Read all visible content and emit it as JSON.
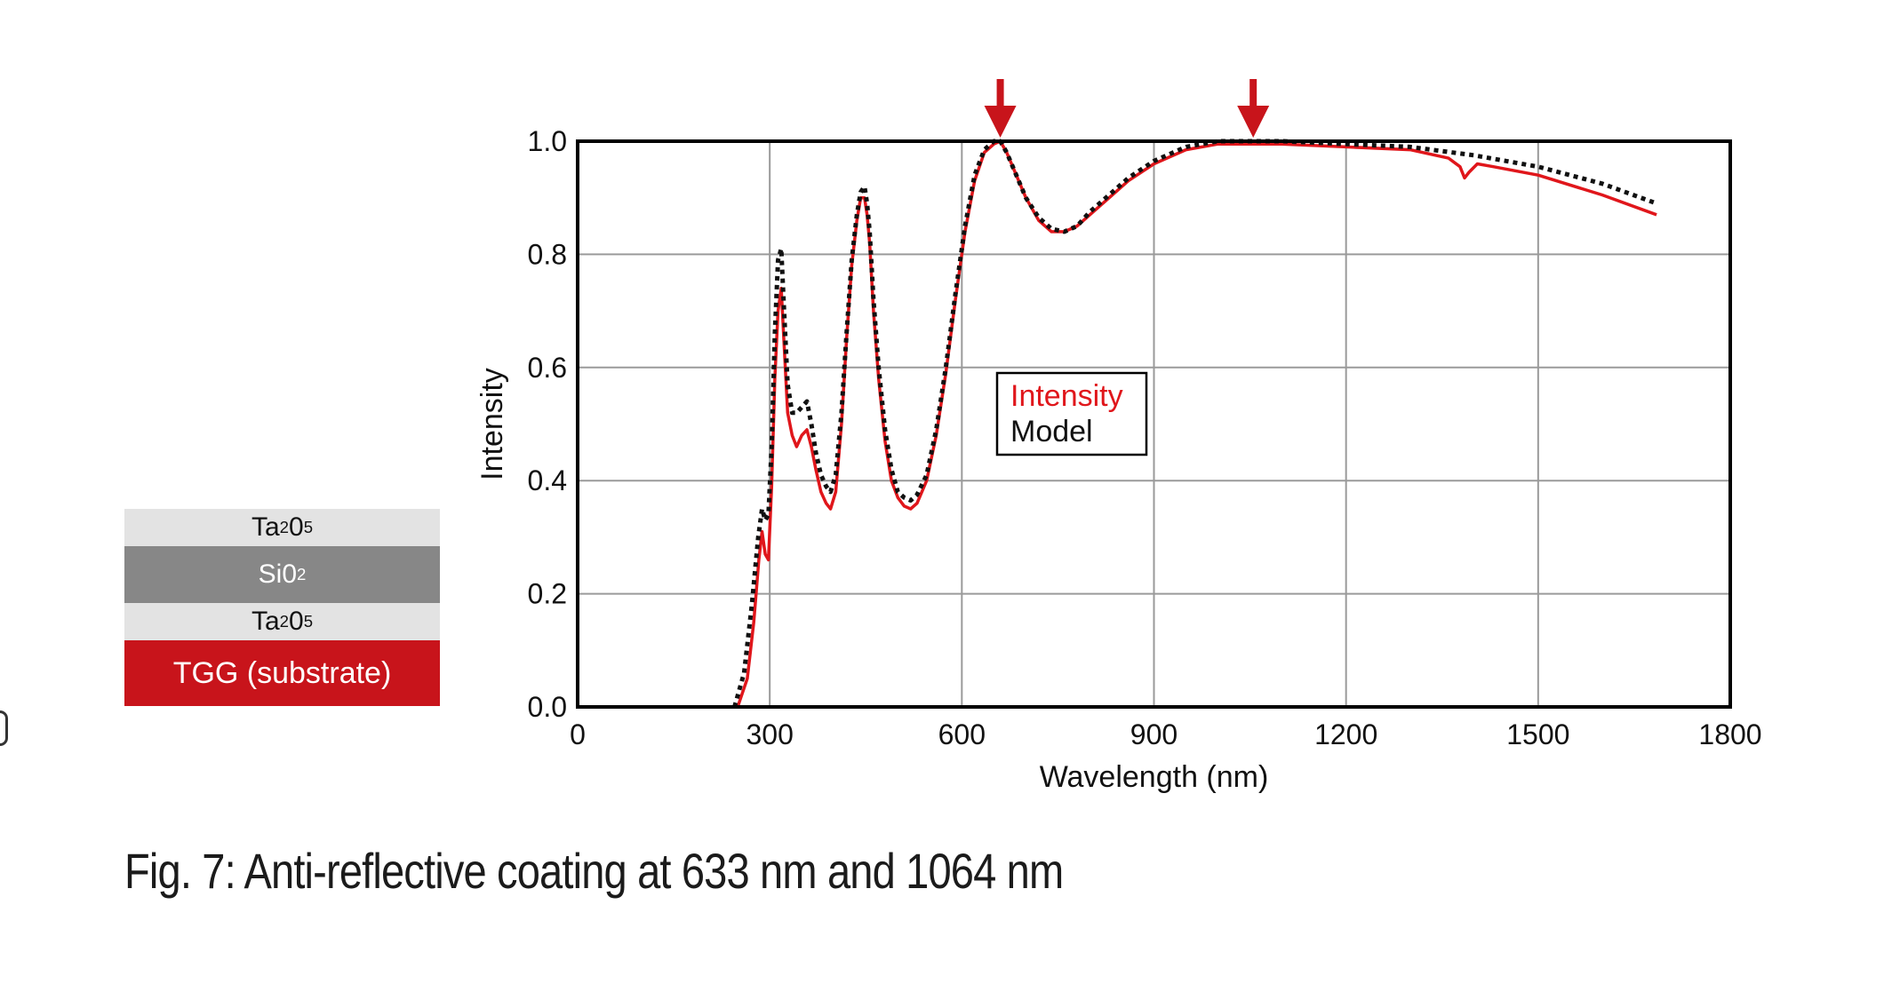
{
  "caption": "Fig. 7: Anti-reflective coating at 633 nm and 1064 nm",
  "layers": [
    {
      "base": "Ta",
      "sub1": "2",
      "mid": "0",
      "sub2": "5",
      "style": "light"
    },
    {
      "base": "Si",
      "sub1": "",
      "mid": "0",
      "sub2": "2",
      "style": "dark"
    },
    {
      "base": "Ta",
      "sub1": "2",
      "mid": "0",
      "sub2": "5",
      "style": "light"
    },
    {
      "label": "TGG (substrate)",
      "style": "red"
    }
  ],
  "colors": {
    "intensity": "#e0161b",
    "model": "#111111",
    "arrow": "#c8141b",
    "grid": "#9a9a9a",
    "substrate": "#c8141b"
  },
  "chart_data": {
    "type": "line",
    "title": "",
    "xlabel": "Wavelength (nm)",
    "ylabel": "Intensity",
    "xlim": [
      0,
      1800
    ],
    "ylim": [
      0,
      1.0
    ],
    "xticks": [
      "0",
      "300",
      "600",
      "900",
      "1200",
      "1500",
      "1800"
    ],
    "yticks": [
      "0.0",
      "0.2",
      "0.4",
      "0.6",
      "0.8",
      "1.0"
    ],
    "grid": true,
    "legend": {
      "placement": "center",
      "entries": [
        "Intensity",
        "Model"
      ]
    },
    "arrows_at": [
      660,
      1055
    ],
    "series": [
      {
        "name": "Intensity",
        "style": "solid",
        "x": [
          250,
          265,
          275,
          283,
          288,
          293,
          298,
          303,
          308,
          313,
          318,
          322,
          328,
          335,
          342,
          350,
          358,
          365,
          372,
          380,
          388,
          395,
          403,
          412,
          420,
          428,
          436,
          442,
          448,
          452,
          456,
          462,
          470,
          480,
          490,
          500,
          510,
          520,
          530,
          545,
          560,
          575,
          590,
          605,
          620,
          635,
          650,
          660,
          670,
          685,
          700,
          720,
          740,
          760,
          780,
          800,
          830,
          860,
          900,
          950,
          1000,
          1050,
          1100,
          1200,
          1300,
          1360,
          1378,
          1385,
          1392,
          1405,
          1430,
          1500,
          1600,
          1685
        ],
        "y": [
          0.0,
          0.05,
          0.15,
          0.26,
          0.31,
          0.27,
          0.26,
          0.39,
          0.58,
          0.7,
          0.74,
          0.65,
          0.52,
          0.48,
          0.46,
          0.48,
          0.49,
          0.46,
          0.42,
          0.38,
          0.36,
          0.35,
          0.38,
          0.5,
          0.65,
          0.78,
          0.86,
          0.9,
          0.9,
          0.87,
          0.82,
          0.7,
          0.58,
          0.47,
          0.4,
          0.37,
          0.355,
          0.35,
          0.36,
          0.4,
          0.48,
          0.59,
          0.72,
          0.84,
          0.93,
          0.98,
          0.995,
          1.0,
          0.98,
          0.94,
          0.9,
          0.86,
          0.84,
          0.84,
          0.85,
          0.87,
          0.9,
          0.93,
          0.96,
          0.985,
          0.995,
          0.995,
          0.995,
          0.99,
          0.985,
          0.97,
          0.955,
          0.935,
          0.945,
          0.96,
          0.955,
          0.94,
          0.905,
          0.87
        ]
      },
      {
        "name": "Model",
        "style": "dotted",
        "x": [
          245,
          260,
          272,
          282,
          288,
          293,
          298,
          303,
          308,
          313,
          318,
          322,
          328,
          335,
          342,
          350,
          358,
          365,
          372,
          380,
          388,
          395,
          403,
          412,
          420,
          428,
          436,
          442,
          448,
          452,
          456,
          462,
          470,
          480,
          490,
          500,
          510,
          520,
          530,
          545,
          560,
          575,
          590,
          605,
          620,
          635,
          650,
          660,
          670,
          685,
          700,
          720,
          740,
          760,
          780,
          800,
          830,
          860,
          900,
          950,
          1000,
          1050,
          1100,
          1200,
          1300,
          1400,
          1500,
          1600,
          1685
        ],
        "y": [
          0.0,
          0.06,
          0.18,
          0.3,
          0.35,
          0.33,
          0.34,
          0.46,
          0.66,
          0.79,
          0.81,
          0.71,
          0.57,
          0.52,
          0.52,
          0.53,
          0.54,
          0.5,
          0.45,
          0.41,
          0.39,
          0.38,
          0.41,
          0.52,
          0.66,
          0.79,
          0.87,
          0.91,
          0.92,
          0.89,
          0.84,
          0.72,
          0.6,
          0.49,
          0.42,
          0.38,
          0.37,
          0.365,
          0.375,
          0.41,
          0.49,
          0.6,
          0.73,
          0.85,
          0.94,
          0.985,
          1.0,
          1.0,
          0.98,
          0.94,
          0.9,
          0.865,
          0.845,
          0.84,
          0.85,
          0.875,
          0.905,
          0.935,
          0.965,
          0.99,
          1.0,
          1.0,
          1.0,
          0.995,
          0.99,
          0.975,
          0.955,
          0.925,
          0.89
        ]
      }
    ]
  }
}
